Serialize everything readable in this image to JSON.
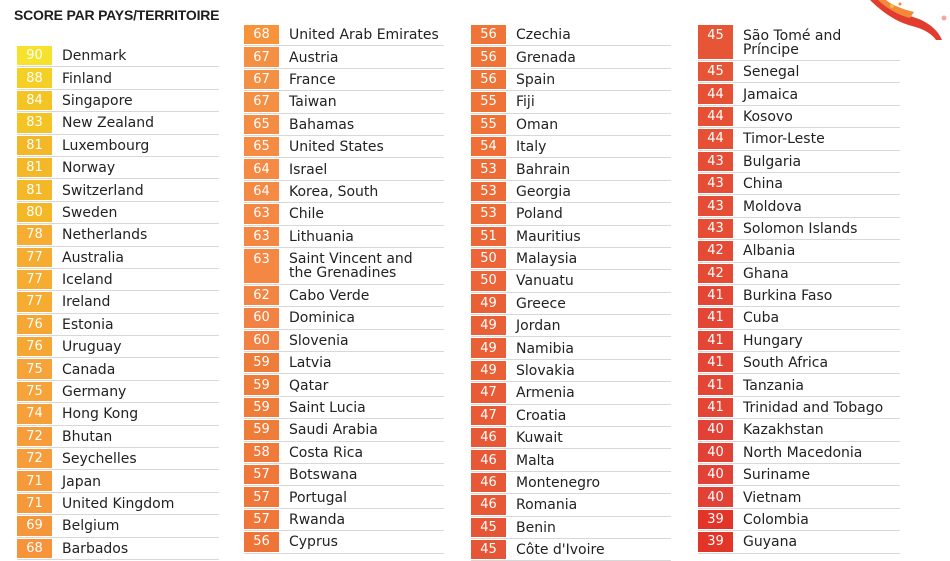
{
  "title": "SCORE PAR PAYS/TERRITOIRE",
  "decoration_icon": "red-orange-swirl-icon",
  "score_colors": {
    "90": "#f6e12c",
    "88": "#f5cf25",
    "84": "#f4c324",
    "83": "#f4c324",
    "81": "#f3b728",
    "80": "#f3b728",
    "78": "#f6ad31",
    "77": "#f6ab31",
    "76": "#f6a632",
    "75": "#f6a33a",
    "74": "#f6a03a",
    "72": "#f69c3a",
    "71": "#f6993b",
    "69": "#f6963b",
    "68": "#f6933b",
    "67": "#f49044",
    "65": "#f48c44",
    "64": "#f48a44",
    "63": "#f48843",
    "62": "#f18544",
    "60": "#f18244",
    "59": "#ef7d3a",
    "58": "#ef7a3a",
    "57": "#ef773a",
    "56": "#ef7437",
    "55": "#ef7237",
    "54": "#ef6f37",
    "53": "#ed6b37",
    "51": "#ec6737",
    "50": "#ec6437",
    "49": "#ea6036",
    "47": "#e85b36",
    "46": "#e75936",
    "45": "#e65535",
    "44": "#e65135",
    "43": "#e54d35",
    "42": "#e54a35",
    "41": "#e34635",
    "40": "#e14235",
    "39": "#e33428"
  },
  "columns": [
    {
      "rows": [
        {
          "score": "90",
          "name": "Denmark"
        },
        {
          "score": "88",
          "name": "Finland"
        },
        {
          "score": "84",
          "name": "Singapore"
        },
        {
          "score": "83",
          "name": "New Zealand"
        },
        {
          "score": "81",
          "name": "Luxembourg"
        },
        {
          "score": "81",
          "name": "Norway"
        },
        {
          "score": "81",
          "name": "Switzerland"
        },
        {
          "score": "80",
          "name": "Sweden"
        },
        {
          "score": "78",
          "name": "Netherlands"
        },
        {
          "score": "77",
          "name": "Australia"
        },
        {
          "score": "77",
          "name": "Iceland"
        },
        {
          "score": "77",
          "name": "Ireland"
        },
        {
          "score": "76",
          "name": "Estonia"
        },
        {
          "score": "76",
          "name": "Uruguay"
        },
        {
          "score": "75",
          "name": "Canada"
        },
        {
          "score": "75",
          "name": "Germany"
        },
        {
          "score": "74",
          "name": "Hong Kong"
        },
        {
          "score": "72",
          "name": "Bhutan"
        },
        {
          "score": "72",
          "name": "Seychelles"
        },
        {
          "score": "71",
          "name": "Japan"
        },
        {
          "score": "71",
          "name": "United Kingdom"
        },
        {
          "score": "69",
          "name": "Belgium"
        },
        {
          "score": "68",
          "name": "Barbados"
        }
      ]
    },
    {
      "rows": [
        {
          "score": "68",
          "name": "United Arab Emirates"
        },
        {
          "score": "67",
          "name": "Austria"
        },
        {
          "score": "67",
          "name": "France"
        },
        {
          "score": "67",
          "name": "Taiwan"
        },
        {
          "score": "65",
          "name": "Bahamas"
        },
        {
          "score": "65",
          "name": "United States"
        },
        {
          "score": "64",
          "name": "Israel"
        },
        {
          "score": "64",
          "name": "Korea, South"
        },
        {
          "score": "63",
          "name": "Chile"
        },
        {
          "score": "63",
          "name": "Lithuania"
        },
        {
          "score": "63",
          "name": "Saint Vincent and the Grenadines",
          "double": true
        },
        {
          "score": "62",
          "name": "Cabo Verde"
        },
        {
          "score": "60",
          "name": "Dominica"
        },
        {
          "score": "60",
          "name": "Slovenia"
        },
        {
          "score": "59",
          "name": "Latvia"
        },
        {
          "score": "59",
          "name": "Qatar"
        },
        {
          "score": "59",
          "name": "Saint Lucia"
        },
        {
          "score": "59",
          "name": "Saudi Arabia"
        },
        {
          "score": "58",
          "name": "Costa Rica"
        },
        {
          "score": "57",
          "name": "Botswana"
        },
        {
          "score": "57",
          "name": "Portugal"
        },
        {
          "score": "57",
          "name": "Rwanda"
        },
        {
          "score": "56",
          "name": "Cyprus"
        }
      ]
    },
    {
      "rows": [
        {
          "score": "56",
          "name": "Czechia"
        },
        {
          "score": "56",
          "name": "Grenada"
        },
        {
          "score": "56",
          "name": "Spain"
        },
        {
          "score": "55",
          "name": "Fiji"
        },
        {
          "score": "55",
          "name": "Oman"
        },
        {
          "score": "54",
          "name": "Italy"
        },
        {
          "score": "53",
          "name": "Bahrain"
        },
        {
          "score": "53",
          "name": "Georgia"
        },
        {
          "score": "53",
          "name": "Poland"
        },
        {
          "score": "51",
          "name": "Mauritius"
        },
        {
          "score": "50",
          "name": "Malaysia"
        },
        {
          "score": "50",
          "name": "Vanuatu"
        },
        {
          "score": "49",
          "name": "Greece"
        },
        {
          "score": "49",
          "name": "Jordan"
        },
        {
          "score": "49",
          "name": "Namibia"
        },
        {
          "score": "49",
          "name": "Slovakia"
        },
        {
          "score": "47",
          "name": "Armenia"
        },
        {
          "score": "47",
          "name": "Croatia"
        },
        {
          "score": "46",
          "name": "Kuwait"
        },
        {
          "score": "46",
          "name": "Malta"
        },
        {
          "score": "46",
          "name": "Montenegro"
        },
        {
          "score": "46",
          "name": "Romania"
        },
        {
          "score": "45",
          "name": "Benin"
        },
        {
          "score": "45",
          "name": "Côte d'Ivoire"
        }
      ]
    },
    {
      "rows": [
        {
          "score": "45",
          "name": "São Tomé and Príncipe",
          "double": true
        },
        {
          "score": "45",
          "name": "Senegal"
        },
        {
          "score": "44",
          "name": "Jamaica"
        },
        {
          "score": "44",
          "name": "Kosovo"
        },
        {
          "score": "44",
          "name": "Timor-Leste"
        },
        {
          "score": "43",
          "name": "Bulgaria"
        },
        {
          "score": "43",
          "name": "China"
        },
        {
          "score": "43",
          "name": "Moldova"
        },
        {
          "score": "43",
          "name": "Solomon Islands"
        },
        {
          "score": "42",
          "name": "Albania"
        },
        {
          "score": "42",
          "name": "Ghana"
        },
        {
          "score": "41",
          "name": "Burkina Faso"
        },
        {
          "score": "41",
          "name": "Cuba"
        },
        {
          "score": "41",
          "name": "Hungary"
        },
        {
          "score": "41",
          "name": "South Africa"
        },
        {
          "score": "41",
          "name": "Tanzania"
        },
        {
          "score": "41",
          "name": "Trinidad and Tobago"
        },
        {
          "score": "40",
          "name": "Kazakhstan"
        },
        {
          "score": "40",
          "name": "North Macedonia"
        },
        {
          "score": "40",
          "name": "Suriname"
        },
        {
          "score": "40",
          "name": "Vietnam"
        },
        {
          "score": "39",
          "name": "Colombia"
        },
        {
          "score": "39",
          "name": "Guyana"
        }
      ]
    }
  ]
}
